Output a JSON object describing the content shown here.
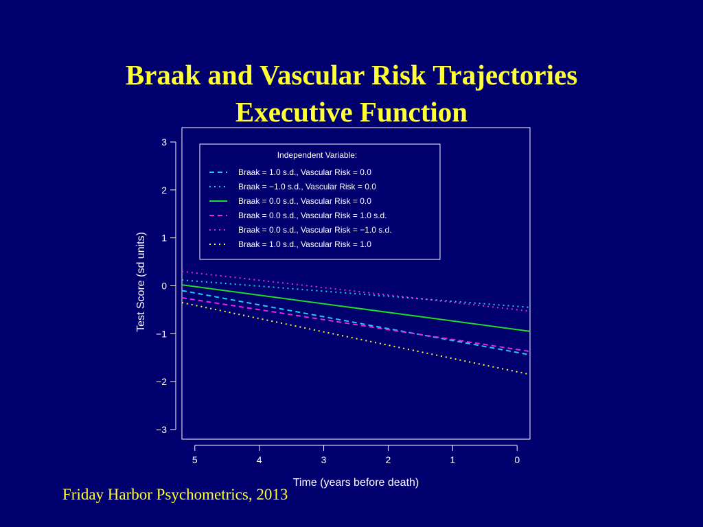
{
  "slide": {
    "title_line1": "Braak and Vascular Risk Trajectories",
    "title_line2": "Executive Function",
    "footer": "Friday Harbor Psychometrics, 2013",
    "colors": {
      "background": "#00006e",
      "title": "#ffff33",
      "axis": "#ffffff"
    }
  },
  "chart_data": {
    "type": "line",
    "title": "",
    "xlabel": "Time (years before death)",
    "ylabel": "Test Score (sd units)",
    "xlim": [
      5.2,
      -0.2
    ],
    "ylim": [
      -3.2,
      3.3
    ],
    "xticks": [
      5,
      4,
      3,
      2,
      1,
      0
    ],
    "yticks": [
      3,
      2,
      1,
      0,
      -1,
      -2,
      -3
    ],
    "xtick_labels": [
      "5",
      "4",
      "3",
      "2",
      "1",
      "0"
    ],
    "ytick_labels": [
      "3",
      "2",
      "1",
      "0",
      "−1",
      "−2",
      "−3"
    ],
    "legend": {
      "placement": "top-left",
      "title": "Independent Variable:"
    },
    "series": [
      {
        "name": "Braak = 1.0 s.d., Vascular Risk = 0.0",
        "color": "#22ccee",
        "dash": "dashed",
        "x": [
          5.2,
          -0.2
        ],
        "y": [
          -0.1,
          -1.44
        ]
      },
      {
        "name": "Braak = −1.0 s.d., Vascular Risk = 0.0",
        "color": "#22ccee",
        "dash": "dotted",
        "x": [
          5.2,
          -0.2
        ],
        "y": [
          0.12,
          -0.45
        ]
      },
      {
        "name": "Braak = 0.0 s.d., Vascular Risk = 0.0",
        "color": "#22dd22",
        "dash": "solid",
        "x": [
          5.2,
          -0.2
        ],
        "y": [
          0.02,
          -0.95
        ]
      },
      {
        "name": "Braak = 0.0 s.d., Vascular Risk = 1.0 s.d.",
        "color": "#ee22ee",
        "dash": "dashed",
        "x": [
          5.2,
          -0.2
        ],
        "y": [
          -0.25,
          -1.37
        ]
      },
      {
        "name": "Braak = 0.0 s.d., Vascular Risk = −1.0 s.d.",
        "color": "#ee22ee",
        "dash": "dotted",
        "x": [
          5.2,
          -0.2
        ],
        "y": [
          0.3,
          -0.53
        ]
      },
      {
        "name": "Braak = 1.0 s.d., Vascular Risk = 1.0",
        "color": "#ffff33",
        "dash": "dotted",
        "x": [
          5.2,
          -0.2
        ],
        "y": [
          -0.35,
          -1.85
        ]
      }
    ]
  }
}
